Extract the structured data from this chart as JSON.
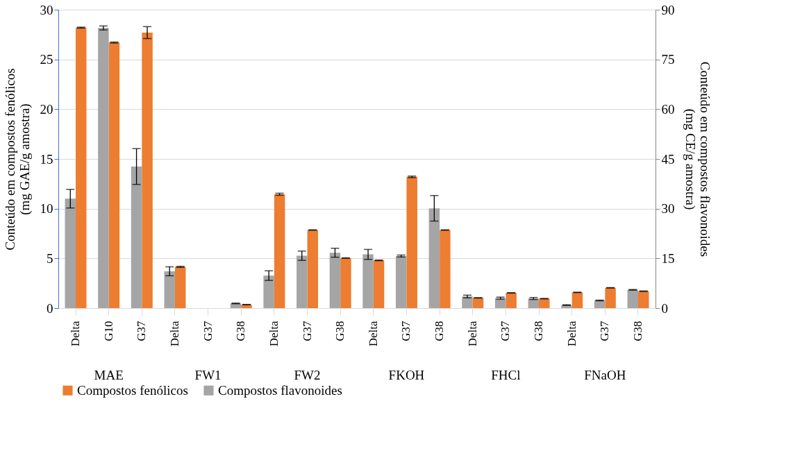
{
  "chart_data": {
    "type": "bar",
    "categories": [
      "Delta",
      "G10",
      "G37",
      "Delta",
      "G37",
      "G38",
      "Delta",
      "G37",
      "G38",
      "Delta",
      "G37",
      "G38",
      "Delta",
      "G37",
      "G38",
      "Delta",
      "G37",
      "G38"
    ],
    "annotations": [
      "MAE",
      "FW1",
      "FW2",
      "FKOH",
      "FHCl",
      "FNaOH"
    ],
    "ylabel": "Conteúdo em compostos fenólicos\n(mg GAE/g amostra)",
    "y2label": "Conteúdo em compostos flavonoides\n(mg CE/g amostra)",
    "series": [
      {
        "name": "Compostos fenólicos",
        "color": "#ed7d31",
        "values": [
          28.2,
          26.7,
          27.7,
          4.15,
          null,
          0.35,
          11.45,
          7.85,
          5.03,
          4.8,
          13.2,
          7.85,
          1.03,
          1.53,
          0.95,
          1.58,
          2.04,
          1.7
        ],
        "errors": [
          0.05,
          0.05,
          0.6,
          0.05,
          null,
          0.02,
          0.1,
          0.02,
          0.02,
          0.03,
          0.08,
          0.02,
          0.02,
          0.02,
          0.02,
          0.02,
          0.02,
          0.02
        ]
      },
      {
        "name": "Compostos flavonoides",
        "color": "#a5a5a5",
        "axis": "y2",
        "values": [
          33,
          84.5,
          42.7,
          11.1,
          null,
          1.4,
          9.8,
          15.8,
          16.7,
          16.2,
          15.7,
          30.1,
          3.5,
          3.0,
          2.9,
          0.9,
          2.3,
          5.5
        ],
        "errors": [
          2.8,
          0.6,
          5.4,
          1.35,
          null,
          0.1,
          1.45,
          1.4,
          1.35,
          1.5,
          0.3,
          3.85,
          0.4,
          0.3,
          0.3,
          0.1,
          0.1,
          0.1
        ]
      }
    ],
    "ylim": [
      0,
      30
    ],
    "yticks": [
      0,
      5,
      10,
      15,
      20,
      25,
      30
    ],
    "y2lim": [
      0,
      90
    ],
    "y2ticks": [
      0,
      15,
      30,
      45,
      60,
      75,
      90
    ],
    "grid": "y",
    "legend": "bottom"
  }
}
